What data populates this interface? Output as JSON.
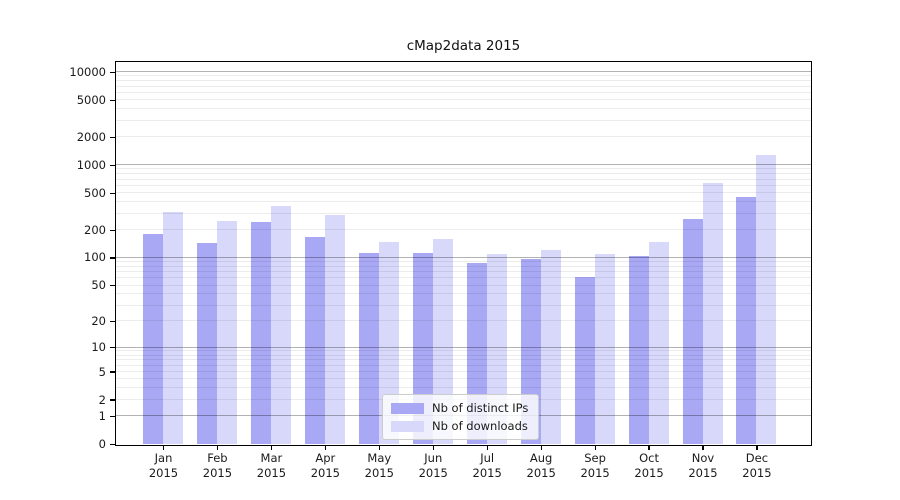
{
  "chart_data": {
    "type": "bar",
    "title": "cMap2data 2015",
    "categories": [
      "Jan",
      "Feb",
      "Mar",
      "Apr",
      "May",
      "Jun",
      "Jul",
      "Aug",
      "Sep",
      "Oct",
      "Nov",
      "Dec"
    ],
    "category_year": "2015",
    "series": [
      {
        "name": "Nb of distinct IPs",
        "color": "#a8a8f5",
        "values": [
          180,
          145,
          240,
          168,
          113,
          112,
          88,
          95,
          62,
          104,
          260,
          450
        ]
      },
      {
        "name": "Nb of downloads",
        "color": "#d8d8fa",
        "values": [
          310,
          245,
          360,
          290,
          146,
          158,
          110,
          121,
          108,
          147,
          630,
          1260
        ]
      }
    ],
    "ylabel": "",
    "xlabel": "",
    "yticks": [
      0,
      1,
      2,
      5,
      10,
      20,
      50,
      100,
      200,
      500,
      1000,
      2000,
      5000,
      10000
    ],
    "scale": "log10(value+1)",
    "ylim": [
      0,
      12700
    ],
    "grid": {
      "on": true,
      "major_at": [
        1,
        10,
        100,
        1000,
        10000
      ],
      "minor_decades": [
        1,
        10,
        100,
        1000
      ]
    },
    "legend_position": "lower center",
    "colors": {
      "axis": "#000000",
      "major_grid": "#adadad",
      "minor_grid": "#ebebeb",
      "text": "#1a1a1a"
    }
  }
}
